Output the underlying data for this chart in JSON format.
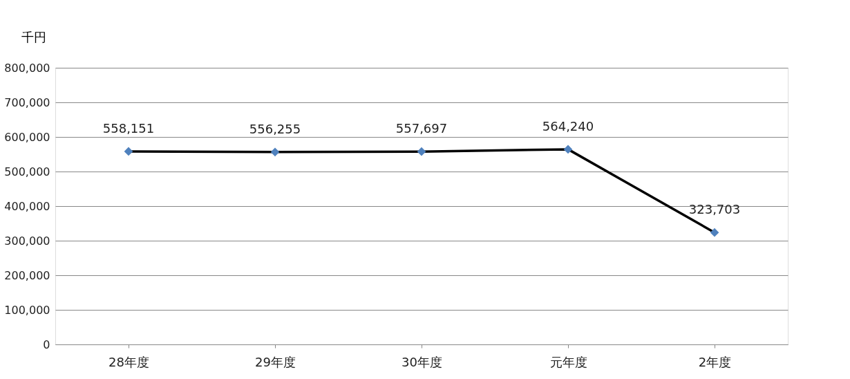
{
  "chart_data": {
    "type": "line",
    "ylabel": "千円",
    "categories": [
      "28年度",
      "29年度",
      "30年度",
      "元年度",
      "2年度"
    ],
    "series": [
      {
        "color": "#000000",
        "colors": [
          "#4f81bd",
          "#4f81bd",
          "#4f81bd",
          "#4f81bd",
          "#4f81bd"
        ],
        "values": [
          558151,
          556255,
          557697,
          564240,
          323703
        ],
        "value_labels": [
          "558,151",
          "556,255",
          "557,697",
          "564,240",
          "323,703"
        ]
      }
    ],
    "ylim": [
      0,
      800000
    ],
    "yticks": [
      {
        "value": 0,
        "label": "0"
      },
      {
        "value": 100000,
        "label": "100,000"
      },
      {
        "value": 200000,
        "label": "200,000"
      },
      {
        "value": 300000,
        "label": "300,000"
      },
      {
        "value": 400000,
        "label": "400,000"
      },
      {
        "value": 500000,
        "label": "500,000"
      },
      {
        "value": 600000,
        "label": "600,000"
      },
      {
        "value": 700000,
        "label": "700,000"
      },
      {
        "value": 800000,
        "label": "800,000"
      }
    ],
    "grid": "y",
    "marker": "diamond",
    "line_style": "solid"
  }
}
